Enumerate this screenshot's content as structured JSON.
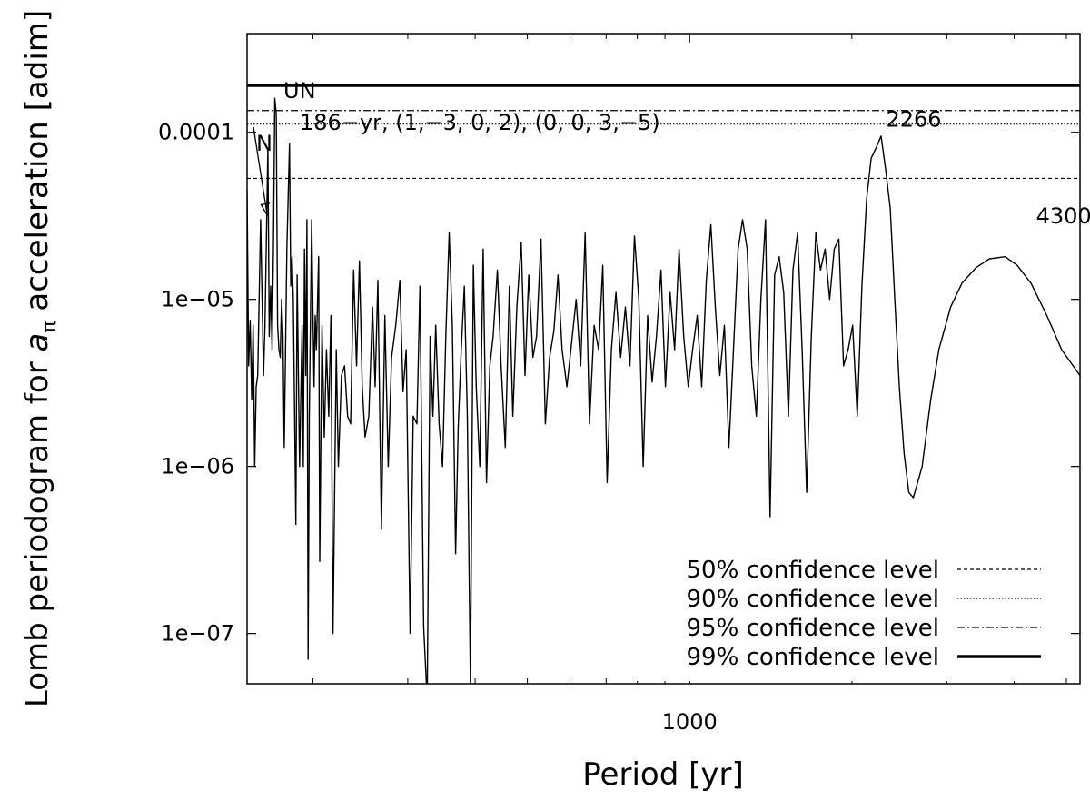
{
  "chart_data": {
    "type": "line",
    "xscale": "log",
    "yscale": "log",
    "xlim": [
      151,
      5300
    ],
    "ylim": [
      5e-08,
      0.00039
    ],
    "xlabel": "Period [yr]",
    "ylabel_prefix": "Lomb periodogram for ",
    "ylabel_var": "a",
    "ylabel_sub": "π",
    "ylabel_suffix": " acceleration [adim]",
    "x_ticks": [
      {
        "value": 1000,
        "label": "1000"
      }
    ],
    "x_minor_ticks": [
      200,
      300,
      400,
      500,
      600,
      700,
      800,
      900,
      2000,
      3000,
      4000,
      5000
    ],
    "y_ticks": [
      {
        "value": 0.0001,
        "label": "0.0001"
      },
      {
        "value": 1e-05,
        "label": "1e−05"
      },
      {
        "value": 1e-06,
        "label": "1e−06"
      },
      {
        "value": 1e-07,
        "label": "1e−07"
      }
    ],
    "confidence_levels": [
      {
        "name": "50% confidence level",
        "value": 5.3e-05,
        "style": "dashed"
      },
      {
        "name": "90% confidence level",
        "value": 0.000112,
        "style": "dotted"
      },
      {
        "name": "95% confidence level",
        "value": 0.000135,
        "style": "dashdot"
      },
      {
        "name": "99% confidence level",
        "value": 0.000191,
        "style": "solid-thick"
      }
    ],
    "annotations": [
      {
        "text": "UN",
        "x": 171,
        "y": 0.000158
      },
      {
        "text": "N",
        "x": 164,
        "y": 3.05e-05,
        "arrow_from": [
          140,
          7.5e-05
        ],
        "label_x": 153,
        "label_y": 9.25e-05
      },
      {
        "text": "186−yr, (1,−3, 0, 2), (0, 0, 3,−5)",
        "x": 186,
        "y": 9.6e-05
      },
      {
        "text": "0.0001",
        "x": 95,
        "y": 9.8e-05
      },
      {
        "text": "2266",
        "x": 2266,
        "y": 0.000103
      },
      {
        "text": "4300",
        "x": 4300,
        "y": 3.15e-05
      }
    ],
    "series": [
      {
        "name": "Lomb periodogram",
        "points": [
          [
            151,
            4.5e-05
          ],
          [
            152,
            4e-06
          ],
          [
            153,
            7.5e-06
          ],
          [
            154,
            2.5e-06
          ],
          [
            155,
            7e-06
          ],
          [
            156,
            1e-06
          ],
          [
            157,
            3e-06
          ],
          [
            158,
            3.5e-06
          ],
          [
            160,
            3e-05
          ],
          [
            162,
            3.5e-06
          ],
          [
            163,
            7e-06
          ],
          [
            165,
            8e-05
          ],
          [
            166,
            6e-06
          ],
          [
            167,
            1.2e-05
          ],
          [
            168,
            5e-06
          ],
          [
            169,
            2e-05
          ],
          [
            170,
            0.00016
          ],
          [
            171,
            0.00013
          ],
          [
            172,
            7e-06
          ],
          [
            173,
            5e-06
          ],
          [
            174,
            4.5e-06
          ],
          [
            175,
            1e-05
          ],
          [
            176,
            6e-06
          ],
          [
            177,
            1.3e-06
          ],
          [
            179,
            2e-05
          ],
          [
            181,
            8.5e-05
          ],
          [
            182,
            1.2e-05
          ],
          [
            183,
            1.8e-05
          ],
          [
            184,
            1e-05
          ],
          [
            186,
            4.5e-07
          ],
          [
            187,
            1.4e-05
          ],
          [
            188,
            3.5e-06
          ],
          [
            189,
            1e-06
          ],
          [
            191,
            7e-06
          ],
          [
            192,
            1e-06
          ],
          [
            193,
            2e-05
          ],
          [
            194,
            3.5e-06
          ],
          [
            195,
            3e-05
          ],
          [
            196,
            7e-08
          ],
          [
            197,
            2e-06
          ],
          [
            199,
            3e-05
          ],
          [
            201,
            3e-06
          ],
          [
            202,
            8e-06
          ],
          [
            203,
            5e-06
          ],
          [
            205,
            1.8e-05
          ],
          [
            206,
            2.7e-07
          ],
          [
            208,
            7e-06
          ],
          [
            210,
            1.5e-06
          ],
          [
            212,
            5e-06
          ],
          [
            214,
            2e-06
          ],
          [
            216,
            8e-06
          ],
          [
            218,
            1e-07
          ],
          [
            221,
            5e-06
          ],
          [
            223,
            1e-06
          ],
          [
            226,
            3.5e-06
          ],
          [
            229,
            4e-06
          ],
          [
            232,
            2e-06
          ],
          [
            235,
            1.8e-06
          ],
          [
            238,
            1.5e-05
          ],
          [
            241,
            4e-06
          ],
          [
            244,
            1.7e-05
          ],
          [
            247,
            3e-06
          ],
          [
            250,
            1.5e-06
          ],
          [
            254,
            2e-06
          ],
          [
            258,
            9e-06
          ],
          [
            261,
            3e-06
          ],
          [
            264,
            1.3e-05
          ],
          [
            268,
            4.2e-07
          ],
          [
            272,
            8e-06
          ],
          [
            276,
            1e-06
          ],
          [
            280,
            4.5e-06
          ],
          [
            285,
            7e-06
          ],
          [
            290,
            1.3e-05
          ],
          [
            294,
            2.8e-06
          ],
          [
            298,
            5e-06
          ],
          [
            303,
            1e-07
          ],
          [
            307,
            2e-06
          ],
          [
            312,
            1.8e-06
          ],
          [
            316,
            1.2e-05
          ],
          [
            321,
            1.1e-07
          ],
          [
            326,
            4e-08
          ],
          [
            330,
            6e-06
          ],
          [
            334,
            2e-06
          ],
          [
            338,
            7e-06
          ],
          [
            343,
            1.8e-06
          ],
          [
            348,
            1e-06
          ],
          [
            353,
            6e-06
          ],
          [
            358,
            2.5e-05
          ],
          [
            363,
            7e-06
          ],
          [
            368,
            3e-07
          ],
          [
            372,
            1.7e-06
          ],
          [
            377,
            5e-06
          ],
          [
            382,
            1.2e-05
          ],
          [
            387,
            2e-06
          ],
          [
            392,
            5e-08
          ],
          [
            397,
            1.6e-05
          ],
          [
            402,
            3e-06
          ],
          [
            408,
            1e-06
          ],
          [
            414,
            2e-05
          ],
          [
            420,
            8e-07
          ],
          [
            426,
            4e-06
          ],
          [
            432,
            6e-06
          ],
          [
            440,
            1.5e-05
          ],
          [
            447,
            4e-06
          ],
          [
            455,
            1.3e-06
          ],
          [
            463,
            1.2e-05
          ],
          [
            470,
            2e-06
          ],
          [
            478,
            9e-06
          ],
          [
            487,
            2.2e-05
          ],
          [
            495,
            3.5e-06
          ],
          [
            503,
            1.4e-05
          ],
          [
            512,
            4.5e-06
          ],
          [
            520,
            6e-06
          ],
          [
            530,
            2.3e-05
          ],
          [
            540,
            1.8e-06
          ],
          [
            550,
            4.5e-06
          ],
          [
            560,
            6.5e-06
          ],
          [
            570,
            1.4e-05
          ],
          [
            580,
            5e-06
          ],
          [
            592,
            3e-06
          ],
          [
            604,
            5.5e-06
          ],
          [
            616,
            1e-05
          ],
          [
            628,
            4e-06
          ],
          [
            640,
            2.5e-05
          ],
          [
            652,
            1.8e-06
          ],
          [
            665,
            7e-06
          ],
          [
            678,
            5e-06
          ],
          [
            690,
            1.6e-05
          ],
          [
            703,
            8e-07
          ],
          [
            716,
            5e-06
          ],
          [
            730,
            1.1e-05
          ],
          [
            745,
            4.5e-06
          ],
          [
            760,
            9e-06
          ],
          [
            775,
            4e-06
          ],
          [
            790,
            2.4e-05
          ],
          [
            805,
            1e-05
          ],
          [
            820,
            1e-06
          ],
          [
            836,
            8e-06
          ],
          [
            852,
            3.2e-06
          ],
          [
            868,
            6e-06
          ],
          [
            885,
            1.5e-05
          ],
          [
            902,
            3e-06
          ],
          [
            920,
            1.1e-05
          ],
          [
            938,
            5e-06
          ],
          [
            956,
            2e-05
          ],
          [
            975,
            6e-06
          ],
          [
            994,
            3e-06
          ],
          [
            1013,
            5e-06
          ],
          [
            1033,
            8e-06
          ],
          [
            1053,
            3e-06
          ],
          [
            1074,
            1.3e-05
          ],
          [
            1095,
            2.8e-05
          ],
          [
            1116,
            9e-06
          ],
          [
            1138,
            3.5e-06
          ],
          [
            1160,
            7e-06
          ],
          [
            1183,
            1.3e-06
          ],
          [
            1206,
            5e-06
          ],
          [
            1230,
            2e-05
          ],
          [
            1254,
            3e-05
          ],
          [
            1279,
            2e-05
          ],
          [
            1304,
            4e-06
          ],
          [
            1330,
            2e-06
          ],
          [
            1356,
            1e-05
          ],
          [
            1383,
            3e-05
          ],
          [
            1410,
            5e-07
          ],
          [
            1438,
            1.4e-05
          ],
          [
            1466,
            1.8e-05
          ],
          [
            1495,
            1.1e-05
          ],
          [
            1525,
            2e-06
          ],
          [
            1555,
            1.5e-05
          ],
          [
            1586,
            2.5e-05
          ],
          [
            1617,
            5e-06
          ],
          [
            1649,
            7e-07
          ],
          [
            1682,
            6e-06
          ],
          [
            1715,
            2.5e-05
          ],
          [
            1749,
            1.5e-05
          ],
          [
            1784,
            2e-05
          ],
          [
            1819,
            1e-05
          ],
          [
            1855,
            2e-05
          ],
          [
            1892,
            2.3e-05
          ],
          [
            1930,
            4e-06
          ],
          [
            1968,
            5e-06
          ],
          [
            2007,
            7e-06
          ],
          [
            2047,
            2e-06
          ],
          [
            2088,
            1.2e-05
          ],
          [
            2130,
            4e-05
          ],
          [
            2172,
            7e-05
          ],
          [
            2215,
            8e-05
          ],
          [
            2266,
            9.5e-05
          ],
          [
            2310,
            6e-05
          ],
          [
            2356,
            3.5e-05
          ],
          [
            2403,
            1e-05
          ],
          [
            2450,
            3e-06
          ],
          [
            2500,
            1.2e-06
          ],
          [
            2550,
            7e-07
          ],
          [
            2600,
            6.5e-07
          ],
          [
            2700,
            1e-06
          ],
          [
            2800,
            2.5e-06
          ],
          [
            2900,
            5e-06
          ],
          [
            3050,
            9e-06
          ],
          [
            3200,
            1.25e-05
          ],
          [
            3400,
            1.55e-05
          ],
          [
            3600,
            1.75e-05
          ],
          [
            3850,
            1.8e-05
          ],
          [
            4050,
            1.6e-05
          ],
          [
            4300,
            1.25e-05
          ],
          [
            4600,
            8e-06
          ],
          [
            4900,
            5e-06
          ],
          [
            5300,
            3.5e-06
          ]
        ]
      }
    ]
  }
}
